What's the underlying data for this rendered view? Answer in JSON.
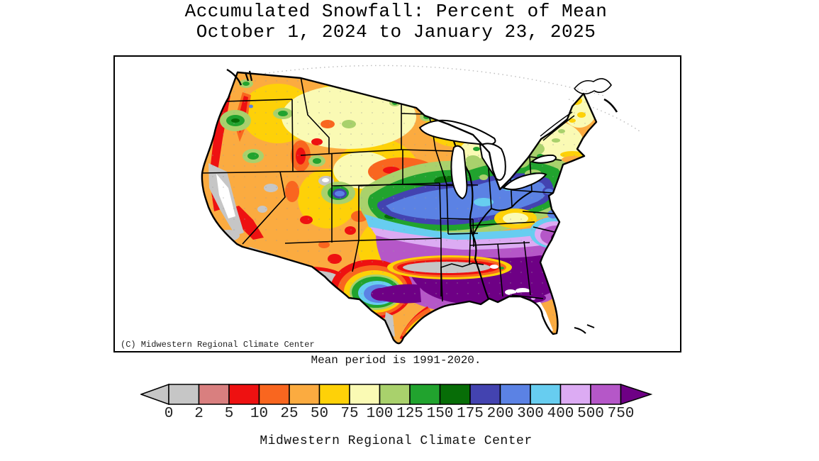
{
  "title": {
    "line1": "Accumulated Snowfall: Percent of Mean",
    "line2": "October 1, 2024 to January 23, 2025"
  },
  "map": {
    "copyright": "(C) Midwestern Regional Climate Center",
    "note": "Mean period is 1991-2020."
  },
  "legend": {
    "ticks": [
      "0",
      "2",
      "5",
      "10",
      "25",
      "50",
      "75",
      "100",
      "125",
      "150",
      "175",
      "200",
      "300",
      "400",
      "500",
      "750"
    ],
    "colors": [
      "#c6c6c6",
      "#d97f7f",
      "#ee1111",
      "#f9661f",
      "#fbab40",
      "#fed108",
      "#fafab4",
      "#a9d16c",
      "#21a32e",
      "#076d07",
      "#4343b0",
      "#5b82e4",
      "#67cdf0",
      "#dcabf3",
      "#b557c8"
    ],
    "arrow_left_color": "#c6c6c6",
    "arrow_right_color": "#6e0085",
    "outline_color": "#000000"
  },
  "footer": {
    "credit": "Midwestern Regional Climate Center"
  }
}
